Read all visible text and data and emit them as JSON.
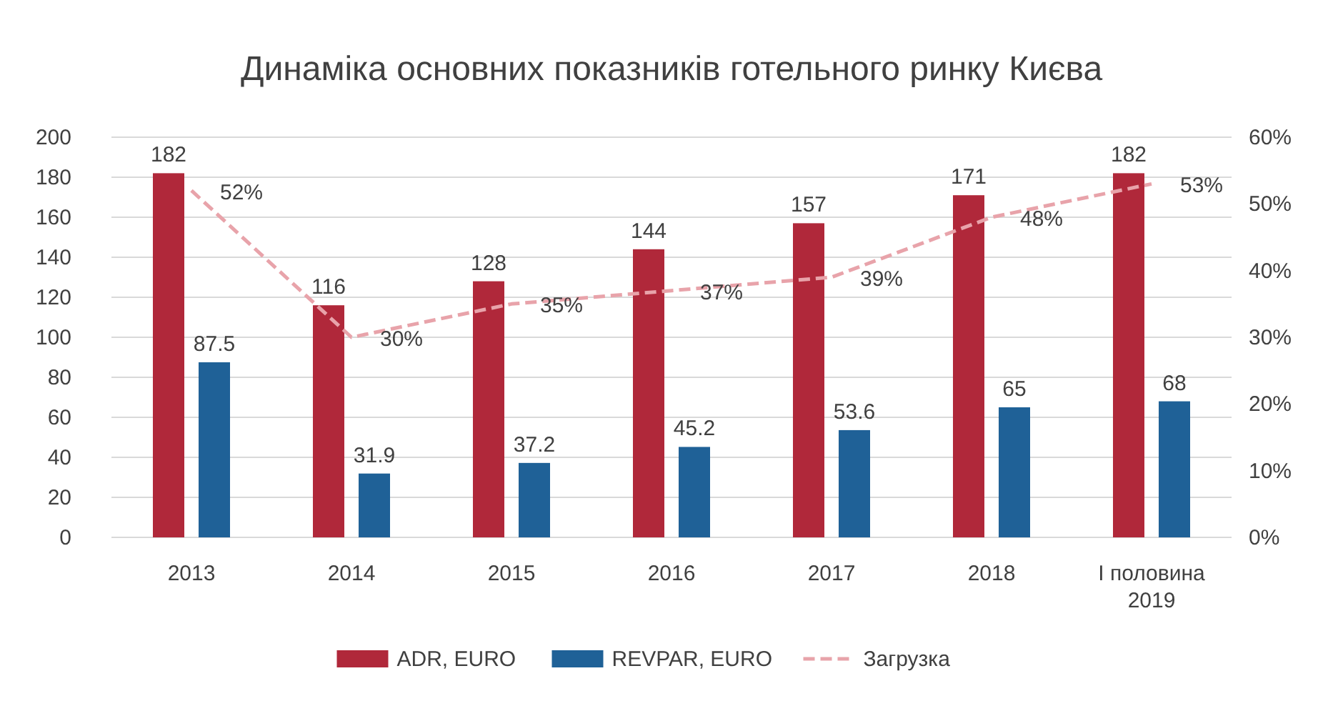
{
  "chart_data": {
    "type": "bar",
    "title": "Динаміка основних показників готельного ринку Києва",
    "categories": [
      "2013",
      "2014",
      "2015",
      "2016",
      "2017",
      "2018",
      "I половина 2019"
    ],
    "series": [
      {
        "name": "ADR, EURO",
        "color": "#b0283a",
        "values": [
          182,
          116,
          128,
          144,
          157,
          171,
          182
        ]
      },
      {
        "name": "REVPAR, EURO",
        "color": "#1f6197",
        "values": [
          87.5,
          31.9,
          37.2,
          45.2,
          53.6,
          65,
          68
        ]
      },
      {
        "name": "Загрузка",
        "type": "line",
        "axis": "y2",
        "color": "#e8a3aa",
        "line_style": "dashed",
        "values": [
          52,
          30,
          35,
          37,
          39,
          48,
          53
        ],
        "value_labels": [
          "52%",
          "30%",
          "35%",
          "37%",
          "39%",
          "48%",
          "53%"
        ]
      }
    ],
    "ylim": [
      0,
      200
    ],
    "yticks": [
      0,
      20,
      40,
      60,
      80,
      100,
      120,
      140,
      160,
      180,
      200
    ],
    "y2lim": [
      0,
      60
    ],
    "y2ticks": [
      {
        "value": 0,
        "label": "0%"
      },
      {
        "value": 10,
        "label": "10%"
      },
      {
        "value": 20,
        "label": "20%"
      },
      {
        "value": 30,
        "label": "30%"
      },
      {
        "value": 40,
        "label": "40%"
      },
      {
        "value": 50,
        "label": "50%"
      },
      {
        "value": 60,
        "label": "60%"
      }
    ],
    "grid": "y",
    "legend": "bottom",
    "data_labels": true
  }
}
